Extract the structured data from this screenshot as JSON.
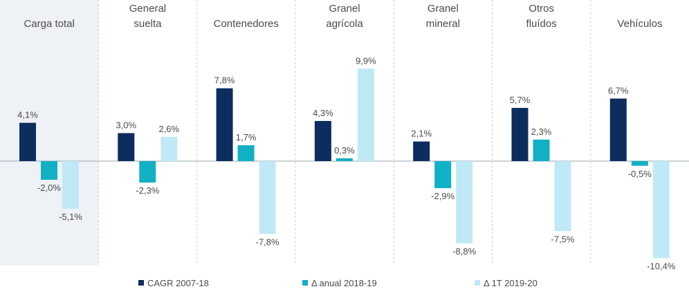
{
  "chart_data": {
    "type": "bar",
    "categories": [
      [
        "Carga total"
      ],
      [
        "General",
        "suelta"
      ],
      [
        "Contenedores"
      ],
      [
        "Granel",
        "agrícola"
      ],
      [
        "Granel",
        "mineral"
      ],
      [
        "Otros",
        "fluídos"
      ],
      [
        "Vehículos"
      ]
    ],
    "series": [
      {
        "name": "CAGR 2007-18",
        "color": "#0c2d5e",
        "values": [
          4.1,
          3.0,
          7.8,
          4.3,
          2.1,
          5.7,
          6.7
        ],
        "labels": [
          "4,1%",
          "3,0%",
          "7,8%",
          "4,3%",
          "2,1%",
          "5,7%",
          "6,7%"
        ]
      },
      {
        "name": "Δ anual 2018-19",
        "color": "#12b0c4",
        "values": [
          -2.0,
          -2.3,
          1.7,
          0.3,
          -2.9,
          2.3,
          -0.5
        ],
        "labels": [
          "-2,0%",
          "-2,3%",
          "1,7%",
          "0,3%",
          "-2,9%",
          "2,3%",
          "-0,5%"
        ]
      },
      {
        "name": "Δ 1T 2019-20",
        "color": "#bfe9f7",
        "values": [
          -5.1,
          2.6,
          -7.8,
          9.9,
          -8.8,
          -7.5,
          -10.4
        ],
        "labels": [
          "-5,1%",
          "2,6%",
          "-7,8%",
          "9,9%",
          "-8,8%",
          "-7,5%",
          "-10,4%"
        ]
      }
    ],
    "highlight_category": 0,
    "highlight_color": "#eef2f6",
    "axis_color": "#9aa4ad",
    "separator_color": "#c8ced4",
    "legend_position": "bottom"
  }
}
